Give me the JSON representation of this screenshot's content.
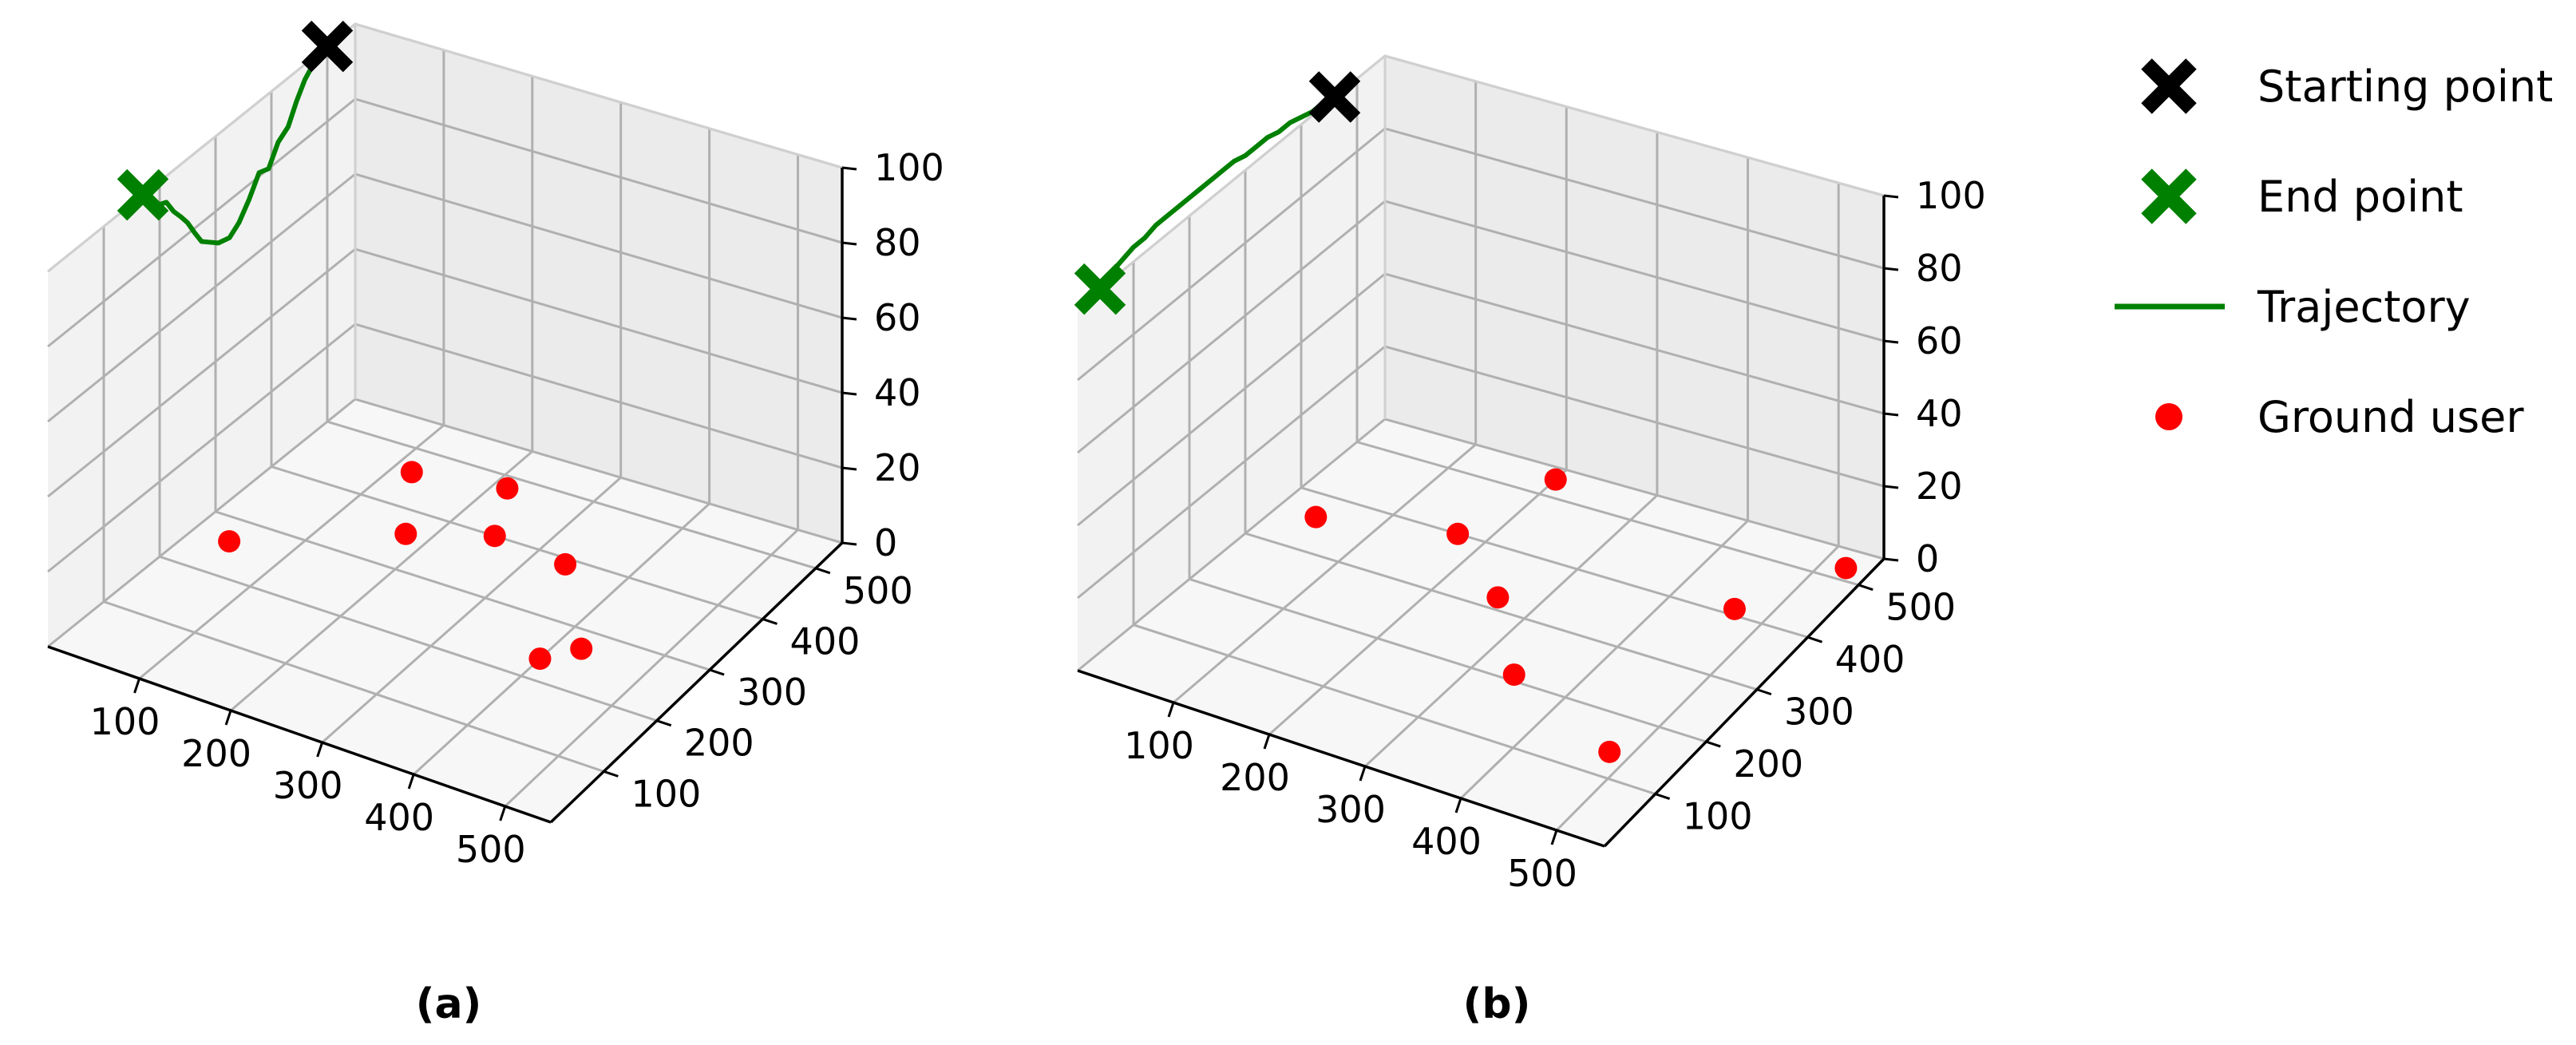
{
  "chart_data": [
    {
      "type": "scatter3d",
      "subplot_label": "(a)",
      "x_ticks": [
        "100",
        "200",
        "300",
        "400",
        "500"
      ],
      "y_ticks": [
        "100",
        "200",
        "300",
        "400",
        "500"
      ],
      "z_ticks": [
        "0",
        "20",
        "40",
        "60",
        "80",
        "100"
      ],
      "xlim": [
        0,
        550
      ],
      "ylim": [
        0,
        550
      ],
      "zlim": [
        0,
        100
      ],
      "ground_users": [
        {
          "x": 40,
          "y": 260,
          "z": 0
        },
        {
          "x": 120,
          "y": 460,
          "z": 0
        },
        {
          "x": 175,
          "y": 360,
          "z": 0
        },
        {
          "x": 215,
          "y": 480,
          "z": 0
        },
        {
          "x": 250,
          "y": 400,
          "z": 0
        },
        {
          "x": 335,
          "y": 390,
          "z": 0
        },
        {
          "x": 400,
          "y": 235,
          "z": 0
        },
        {
          "x": 425,
          "y": 270,
          "z": 0
        }
      ],
      "start_point": {
        "x": 0,
        "y": 500,
        "z": 100
      },
      "end_point": {
        "x": 0,
        "y": 170,
        "z": 100
      },
      "trajectory": [
        {
          "x": 0,
          "y": 500,
          "z": 100
        },
        {
          "x": 0,
          "y": 480,
          "z": 99
        },
        {
          "x": 0,
          "y": 460,
          "z": 96
        },
        {
          "x": 0,
          "y": 445,
          "z": 92
        },
        {
          "x": 0,
          "y": 430,
          "z": 87
        },
        {
          "x": 0,
          "y": 412,
          "z": 85
        },
        {
          "x": 0,
          "y": 395,
          "z": 80
        },
        {
          "x": 0,
          "y": 378,
          "z": 81
        },
        {
          "x": 0,
          "y": 360,
          "z": 76
        },
        {
          "x": 0,
          "y": 342,
          "z": 72
        },
        {
          "x": 0,
          "y": 325,
          "z": 70
        },
        {
          "x": 0,
          "y": 305,
          "z": 71
        },
        {
          "x": 0,
          "y": 290,
          "z": 73
        },
        {
          "x": 0,
          "y": 275,
          "z": 75
        },
        {
          "x": 0,
          "y": 262,
          "z": 79
        },
        {
          "x": 0,
          "y": 250,
          "z": 83
        },
        {
          "x": 0,
          "y": 238,
          "z": 86
        },
        {
          "x": 0,
          "y": 225,
          "z": 89
        },
        {
          "x": 0,
          "y": 212,
          "z": 93
        },
        {
          "x": 0,
          "y": 198,
          "z": 94
        },
        {
          "x": 0,
          "y": 185,
          "z": 97
        },
        {
          "x": 0,
          "y": 170,
          "z": 100
        }
      ]
    },
    {
      "type": "scatter3d",
      "subplot_label": "(b)",
      "x_ticks": [
        "100",
        "200",
        "300",
        "400",
        "500"
      ],
      "y_ticks": [
        "100",
        "200",
        "300",
        "400",
        "500"
      ],
      "z_ticks": [
        "0",
        "20",
        "40",
        "60",
        "80",
        "100"
      ],
      "xlim": [
        0,
        550
      ],
      "ylim": [
        0,
        550
      ],
      "zlim": [
        0,
        100
      ],
      "ground_users": [
        {
          "x": 40,
          "y": 360,
          "z": 0
        },
        {
          "x": 170,
          "y": 400,
          "z": 0
        },
        {
          "x": 200,
          "y": 530,
          "z": 0
        },
        {
          "x": 260,
          "y": 320,
          "z": 0
        },
        {
          "x": 340,
          "y": 210,
          "z": 0
        },
        {
          "x": 465,
          "y": 410,
          "z": 0
        },
        {
          "x": 525,
          "y": 520,
          "z": 0
        },
        {
          "x": 480,
          "y": 140,
          "z": 0
        }
      ],
      "start_point": {
        "x": 0,
        "y": 460,
        "z": 100
      },
      "end_point": {
        "x": 0,
        "y": 40,
        "z": 100
      },
      "trajectory": [
        {
          "x": 0,
          "y": 460,
          "z": 100
        },
        {
          "x": 0,
          "y": 440,
          "z": 101
        },
        {
          "x": 0,
          "y": 420,
          "z": 101
        },
        {
          "x": 0,
          "y": 400,
          "z": 102
        },
        {
          "x": 0,
          "y": 380,
          "z": 103
        },
        {
          "x": 0,
          "y": 360,
          "z": 103
        },
        {
          "x": 0,
          "y": 340,
          "z": 104
        },
        {
          "x": 0,
          "y": 320,
          "z": 104
        },
        {
          "x": 0,
          "y": 300,
          "z": 104
        },
        {
          "x": 0,
          "y": 280,
          "z": 105
        },
        {
          "x": 0,
          "y": 260,
          "z": 105
        },
        {
          "x": 0,
          "y": 240,
          "z": 105
        },
        {
          "x": 0,
          "y": 220,
          "z": 105
        },
        {
          "x": 0,
          "y": 200,
          "z": 105
        },
        {
          "x": 0,
          "y": 180,
          "z": 105
        },
        {
          "x": 0,
          "y": 160,
          "z": 105
        },
        {
          "x": 0,
          "y": 140,
          "z": 105
        },
        {
          "x": 0,
          "y": 120,
          "z": 104
        },
        {
          "x": 0,
          "y": 100,
          "z": 104
        },
        {
          "x": 0,
          "y": 80,
          "z": 103
        },
        {
          "x": 0,
          "y": 60,
          "z": 102
        },
        {
          "x": 0,
          "y": 40,
          "z": 100
        }
      ]
    }
  ],
  "legend": {
    "items": [
      {
        "label": "Starting point",
        "marker": "x",
        "color": "#000000"
      },
      {
        "label": "End point",
        "marker": "x",
        "color": "#008000"
      },
      {
        "label": "Trajectory",
        "marker": "line",
        "color": "#008000"
      },
      {
        "label": "Ground user",
        "marker": "dot",
        "color": "#ff0000"
      }
    ],
    "placement": "right"
  },
  "colors": {
    "pane_back": "#ebebeb",
    "pane_side": "#f2f2f2",
    "pane_floor": "#f7f7f7",
    "grid": "#b0b0b0",
    "trajectory": "#008000",
    "ground_user": "#ff0000",
    "start": "#000000",
    "end": "#008000"
  }
}
